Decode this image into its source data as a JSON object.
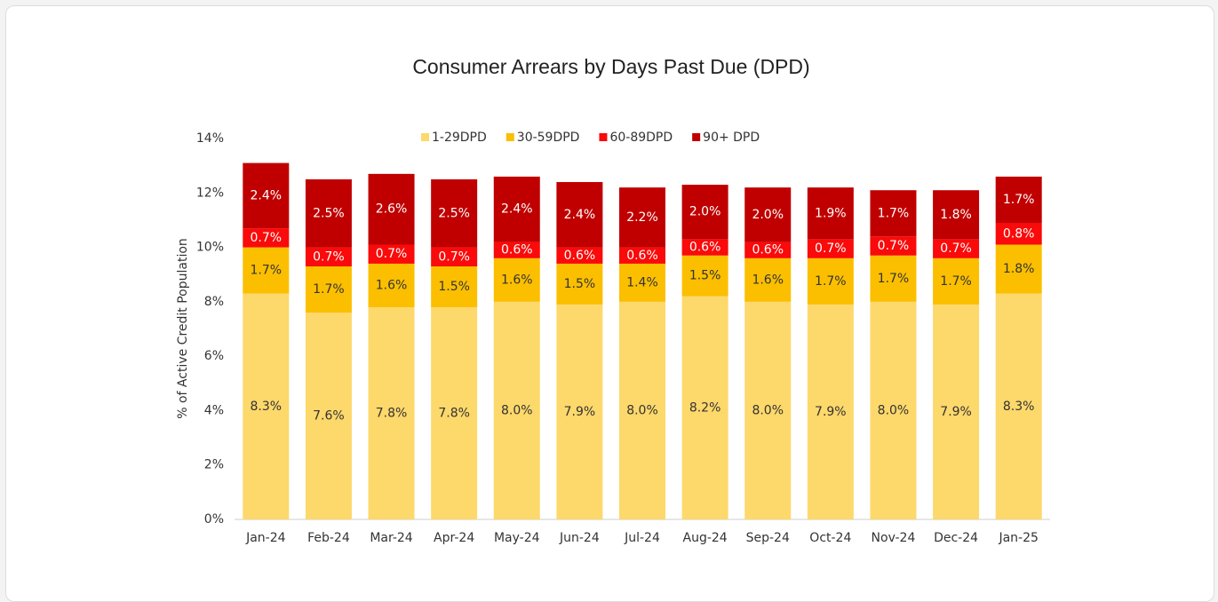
{
  "chart_data": {
    "type": "stacked_bar",
    "title": "Consumer Arrears by Days Past Due (DPD)",
    "y_label": "% of Active Credit Population",
    "categories": [
      "Jan-24",
      "Feb-24",
      "Mar-24",
      "Apr-24",
      "May-24",
      "Jun-24",
      "Jul-24",
      "Aug-24",
      "Sep-24",
      "Oct-24",
      "Nov-24",
      "Dec-24",
      "Jan-25"
    ],
    "series": [
      {
        "name": "1-29DPD",
        "color": "#fdd86b",
        "label_color": "#333333",
        "values": [
          8.3,
          7.6,
          7.8,
          7.8,
          8.0,
          7.9,
          8.0,
          8.2,
          8.0,
          7.9,
          8.0,
          7.9,
          8.3
        ],
        "value_labels": [
          "8.3%",
          "7.6%",
          "7.8%",
          "7.8%",
          "8.0%",
          "7.9%",
          "8.0%",
          "8.2%",
          "8.0%",
          "7.9%",
          "8.0%",
          "7.9%",
          "8.3%"
        ]
      },
      {
        "name": "30-59DPD",
        "color": "#fbbf00",
        "label_color": "#333333",
        "values": [
          1.7,
          1.7,
          1.6,
          1.5,
          1.6,
          1.5,
          1.4,
          1.5,
          1.6,
          1.7,
          1.7,
          1.7,
          1.8
        ],
        "value_labels": [
          "1.7%",
          "1.7%",
          "1.6%",
          "1.5%",
          "1.6%",
          "1.5%",
          "1.4%",
          "1.5%",
          "1.6%",
          "1.7%",
          "1.7%",
          "1.7%",
          "1.8%"
        ]
      },
      {
        "name": "60-89DPD",
        "color": "#fa0a0a",
        "label_color": "#ffffff",
        "values": [
          0.7,
          0.7,
          0.7,
          0.7,
          0.6,
          0.6,
          0.6,
          0.6,
          0.6,
          0.7,
          0.7,
          0.7,
          0.8
        ],
        "value_labels": [
          "0.7%",
          "0.7%",
          "0.7%",
          "0.7%",
          "0.6%",
          "0.6%",
          "0.6%",
          "0.6%",
          "0.6%",
          "0.7%",
          "0.7%",
          "0.7%",
          "0.8%"
        ]
      },
      {
        "name": "90+ DPD",
        "color": "#c00000",
        "label_color": "#ffffff",
        "values": [
          2.4,
          2.5,
          2.6,
          2.5,
          2.4,
          2.4,
          2.2,
          2.0,
          2.0,
          1.9,
          1.7,
          1.8,
          1.7
        ],
        "value_labels": [
          "2.4%",
          "2.5%",
          "2.6%",
          "2.5%",
          "2.4%",
          "2.4%",
          "2.2%",
          "2.0%",
          "2.0%",
          "1.9%",
          "1.7%",
          "1.8%",
          "1.7%"
        ]
      }
    ],
    "ylim": [
      0,
      14
    ],
    "yticks": [
      {
        "value": 0,
        "label": "0%"
      },
      {
        "value": 2,
        "label": "2%"
      },
      {
        "value": 4,
        "label": "4%"
      },
      {
        "value": 6,
        "label": "6%"
      },
      {
        "value": 8,
        "label": "8%"
      },
      {
        "value": 10,
        "label": "10%"
      },
      {
        "value": 12,
        "label": "12%"
      },
      {
        "value": 14,
        "label": "14%"
      }
    ],
    "legend": "top"
  }
}
